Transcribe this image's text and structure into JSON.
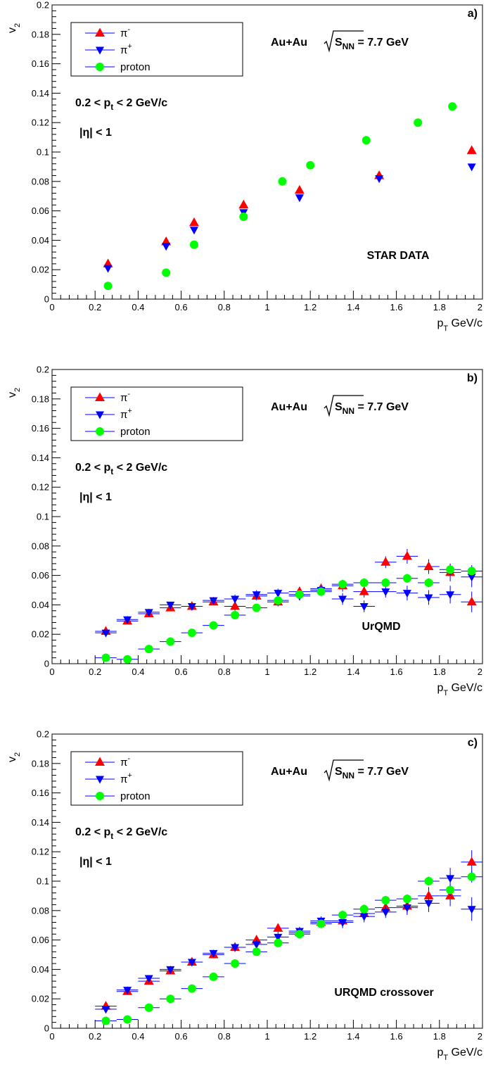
{
  "chart_data": [
    {
      "type": "scatter",
      "panel_label": "a)",
      "xlabel": "p",
      "xlabel_sub": "T",
      "xlabel_unit": " GeV/c",
      "ylabel": "v",
      "ylabel_sub": "2",
      "xlim": [
        0,
        2
      ],
      "ylim": [
        0,
        0.2
      ],
      "x_ticks": [
        "0",
        "0.2",
        "0.4",
        "0.6",
        "0.8",
        "1",
        "1.2",
        "1.4",
        "1.6",
        "1.8",
        "2"
      ],
      "y_ticks": [
        "0",
        "0.02",
        "0.04",
        "0.06",
        "0.08",
        "0.1",
        "0.12",
        "0.14",
        "0.16",
        "0.18",
        "0.2"
      ],
      "system_label": "Au+Au",
      "energy_sqrt": "S",
      "energy_sub": "NN",
      "energy_value": " = 7.7 GeV",
      "cut_pt_a": "0.2 < p",
      "cut_pt_sub": "t",
      "cut_pt_b": " < 2 GeV/c",
      "cut_eta": "|η| < 1",
      "annotation": "STAR DATA",
      "error_bars": false,
      "series": [
        {
          "name": "π",
          "sup": "-",
          "marker": "triangle-up",
          "color": "#ff0000",
          "x": [
            0.26,
            0.53,
            0.66,
            0.89,
            1.15,
            1.52,
            1.95
          ],
          "y": [
            0.024,
            0.039,
            0.052,
            0.064,
            0.074,
            0.084,
            0.101
          ]
        },
        {
          "name": "π",
          "sup": "+",
          "marker": "triangle-down",
          "color": "#0000ff",
          "x": [
            0.26,
            0.53,
            0.66,
            0.89,
            1.15,
            1.52,
            1.95
          ],
          "y": [
            0.021,
            0.036,
            0.047,
            0.059,
            0.069,
            0.082,
            0.09
          ]
        },
        {
          "name": "proton",
          "sup": "",
          "marker": "circle",
          "color": "#00ff00",
          "x": [
            0.26,
            0.53,
            0.66,
            0.89,
            1.07,
            1.2,
            1.46,
            1.7,
            1.86
          ],
          "y": [
            0.009,
            0.018,
            0.037,
            0.056,
            0.08,
            0.091,
            0.108,
            0.12,
            0.131
          ]
        }
      ]
    },
    {
      "type": "scatter",
      "panel_label": "b)",
      "xlabel": "p",
      "xlabel_sub": "T",
      "xlabel_unit": " GeV/c",
      "ylabel": "v",
      "ylabel_sub": "2",
      "xlim": [
        0,
        2
      ],
      "ylim": [
        0,
        0.2
      ],
      "x_ticks": [
        "0",
        "0.2",
        "0.4",
        "0.6",
        "0.8",
        "1",
        "1.2",
        "1.4",
        "1.6",
        "1.8",
        "2"
      ],
      "y_ticks": [
        "0",
        "0.02",
        "0.04",
        "0.06",
        "0.08",
        "0.1",
        "0.12",
        "0.14",
        "0.16",
        "0.18",
        "0.2"
      ],
      "system_label": "Au+Au",
      "energy_sqrt": "S",
      "energy_sub": "NN",
      "energy_value": " = 7.7 GeV",
      "cut_pt_a": "0.2 < p",
      "cut_pt_sub": "t",
      "cut_pt_b": " < 2 GeV/c",
      "cut_eta": "|η| < 1",
      "annotation": "UrQMD",
      "error_bars": true,
      "series": [
        {
          "name": "π",
          "sup": "-",
          "marker": "triangle-up",
          "color": "#ff0000",
          "x": [
            0.25,
            0.35,
            0.45,
            0.55,
            0.65,
            0.75,
            0.85,
            0.95,
            1.05,
            1.15,
            1.25,
            1.35,
            1.45,
            1.55,
            1.65,
            1.75,
            1.85,
            1.95
          ],
          "y": [
            0.022,
            0.029,
            0.034,
            0.038,
            0.039,
            0.042,
            0.039,
            0.046,
            0.042,
            0.049,
            0.051,
            0.053,
            0.049,
            0.069,
            0.073,
            0.066,
            0.062,
            0.042
          ],
          "yerr": [
            0.002,
            0.002,
            0.002,
            0.002,
            0.002,
            0.002,
            0.003,
            0.003,
            0.003,
            0.003,
            0.003,
            0.004,
            0.004,
            0.004,
            0.005,
            0.005,
            0.006,
            0.007
          ]
        },
        {
          "name": "π",
          "sup": "+",
          "marker": "triangle-down",
          "color": "#0000ff",
          "x": [
            0.25,
            0.35,
            0.45,
            0.55,
            0.65,
            0.75,
            0.85,
            0.95,
            1.05,
            1.15,
            1.25,
            1.35,
            1.45,
            1.55,
            1.65,
            1.75,
            1.85,
            1.95
          ],
          "y": [
            0.021,
            0.03,
            0.035,
            0.04,
            0.039,
            0.043,
            0.044,
            0.047,
            0.048,
            0.046,
            0.05,
            0.044,
            0.039,
            0.049,
            0.048,
            0.045,
            0.047,
            0.059
          ],
          "yerr": [
            0.002,
            0.002,
            0.002,
            0.002,
            0.002,
            0.002,
            0.003,
            0.003,
            0.003,
            0.003,
            0.003,
            0.004,
            0.004,
            0.004,
            0.005,
            0.005,
            0.006,
            0.007
          ]
        },
        {
          "name": "proton",
          "sup": "",
          "marker": "circle",
          "color": "#00ff00",
          "x": [
            0.25,
            0.35,
            0.45,
            0.55,
            0.65,
            0.75,
            0.85,
            0.95,
            1.05,
            1.15,
            1.25,
            1.35,
            1.45,
            1.55,
            1.65,
            1.75,
            1.85,
            1.95
          ],
          "y": [
            0.004,
            0.003,
            0.01,
            0.015,
            0.021,
            0.026,
            0.033,
            0.038,
            0.043,
            0.047,
            0.049,
            0.054,
            0.055,
            0.055,
            0.058,
            0.055,
            0.064,
            0.063
          ],
          "yerr": [
            0.001,
            0.001,
            0.001,
            0.001,
            0.001,
            0.002,
            0.002,
            0.002,
            0.002,
            0.002,
            0.002,
            0.003,
            0.003,
            0.003,
            0.003,
            0.003,
            0.004,
            0.004
          ]
        }
      ]
    },
    {
      "type": "scatter",
      "panel_label": "c)",
      "xlabel": "p",
      "xlabel_sub": "T",
      "xlabel_unit": " GeV/c",
      "ylabel": "v",
      "ylabel_sub": "2",
      "xlim": [
        0,
        2
      ],
      "ylim": [
        0,
        0.2
      ],
      "x_ticks": [
        "0",
        "0.2",
        "0.4",
        "0.6",
        "0.8",
        "1",
        "1.2",
        "1.4",
        "1.6",
        "1.8",
        "2"
      ],
      "y_ticks": [
        "0",
        "0.02",
        "0.04",
        "0.06",
        "0.08",
        "0.1",
        "0.12",
        "0.14",
        "0.16",
        "0.18",
        "0.2"
      ],
      "system_label": "Au+Au",
      "energy_sqrt": "S",
      "energy_sub": "NN",
      "energy_value": " = 7.7 GeV",
      "cut_pt_a": "0.2 < p",
      "cut_pt_sub": "t",
      "cut_pt_b": " < 2 GeV/c",
      "cut_eta": "|η| < 1",
      "annotation": "URQMD crossover",
      "error_bars": true,
      "series": [
        {
          "name": "π",
          "sup": "-",
          "marker": "triangle-up",
          "color": "#ff0000",
          "x": [
            0.25,
            0.35,
            0.45,
            0.55,
            0.65,
            0.75,
            0.85,
            0.95,
            1.05,
            1.15,
            1.25,
            1.35,
            1.45,
            1.55,
            1.65,
            1.75,
            1.85,
            1.95
          ],
          "y": [
            0.015,
            0.025,
            0.032,
            0.039,
            0.045,
            0.05,
            0.055,
            0.06,
            0.068,
            0.065,
            0.072,
            0.073,
            0.078,
            0.082,
            0.083,
            0.09,
            0.09,
            0.113
          ],
          "yerr": [
            0.002,
            0.002,
            0.002,
            0.002,
            0.002,
            0.002,
            0.003,
            0.003,
            0.003,
            0.003,
            0.003,
            0.004,
            0.004,
            0.004,
            0.005,
            0.006,
            0.007,
            0.008
          ]
        },
        {
          "name": "π",
          "sup": "+",
          "marker": "triangle-down",
          "color": "#0000ff",
          "x": [
            0.25,
            0.35,
            0.45,
            0.55,
            0.65,
            0.75,
            0.85,
            0.95,
            1.05,
            1.15,
            1.25,
            1.35,
            1.45,
            1.55,
            1.65,
            1.75,
            1.85,
            1.95
          ],
          "y": [
            0.013,
            0.026,
            0.034,
            0.04,
            0.045,
            0.051,
            0.055,
            0.057,
            0.062,
            0.066,
            0.073,
            0.072,
            0.076,
            0.079,
            0.082,
            0.085,
            0.102,
            0.081
          ],
          "yerr": [
            0.002,
            0.002,
            0.002,
            0.002,
            0.002,
            0.002,
            0.003,
            0.003,
            0.003,
            0.003,
            0.003,
            0.004,
            0.004,
            0.004,
            0.005,
            0.006,
            0.007,
            0.008
          ]
        },
        {
          "name": "proton",
          "sup": "",
          "marker": "circle",
          "color": "#00ff00",
          "x": [
            0.25,
            0.35,
            0.45,
            0.55,
            0.65,
            0.75,
            0.85,
            0.95,
            1.05,
            1.15,
            1.25,
            1.35,
            1.45,
            1.55,
            1.65,
            1.75,
            1.85,
            1.95
          ],
          "y": [
            0.005,
            0.006,
            0.014,
            0.02,
            0.027,
            0.035,
            0.044,
            0.052,
            0.058,
            0.064,
            0.071,
            0.077,
            0.081,
            0.087,
            0.088,
            0.1,
            0.094,
            0.103
          ],
          "yerr": [
            0.001,
            0.001,
            0.001,
            0.001,
            0.001,
            0.002,
            0.002,
            0.002,
            0.002,
            0.002,
            0.002,
            0.003,
            0.003,
            0.003,
            0.003,
            0.003,
            0.004,
            0.004
          ]
        }
      ]
    }
  ]
}
